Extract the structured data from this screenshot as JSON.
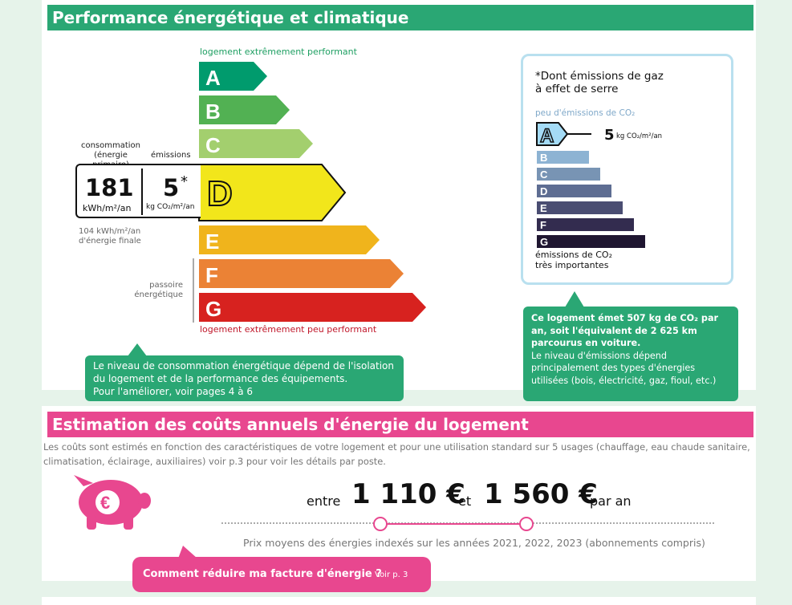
{
  "dpe": {
    "title": "Performance énergétique et climatique",
    "top_label": "logement extrêmement performant",
    "bottom_label": "logement extrêmement peu performant",
    "classes": [
      "A",
      "B",
      "C",
      "D",
      "E",
      "F",
      "G"
    ],
    "current_class": "D",
    "consumption_label": "consommation\n(énergie primaire)",
    "emissions_label": "émissions",
    "consumption_value": "181",
    "consumption_unit": "kWh/m²/an",
    "emissions_value": "5",
    "emissions_star": "*",
    "emissions_unit": "kg CO₂/m²/an",
    "final_energy": "104 kWh/m²/an\nd'énergie finale",
    "passoire": "passoire\nénergétique",
    "info": "Le niveau de consommation énergétique dépend de l'isolation du logement et de la performance des équipements.\nPour l'améliorer, voir pages 4 à 6",
    "colors": {
      "A": "#009b6d",
      "B": "#52b153",
      "C": "#a3cf6e",
      "D": "#f2e61b",
      "E": "#f0b41c",
      "F": "#eb8235",
      "G": "#d7221f"
    }
  },
  "ges": {
    "heading": "*Dont émissions de gaz\nà effet de serre",
    "top_label": "peu d'émissions de CO₂",
    "current_class": "A",
    "value": "5",
    "unit": "kg CO₂/m²/an",
    "classes": [
      "B",
      "C",
      "D",
      "E",
      "F",
      "G"
    ],
    "bottom_label": "émissions de CO₂\ntrès importantes",
    "colors": {
      "A": "#a4dbf6",
      "B": "#8db3d3",
      "C": "#7894b4",
      "D": "#5e6d92",
      "E": "#4a4d72",
      "F": "#332c4f",
      "G": "#1f1631"
    },
    "info_bold": "Ce logement émet 507 kg de CO₂ par an, soit l'équivalent de 2 625 km parcourus en voiture.",
    "info_normal": "Le niveau d'émissions dépend principalement des types d'énergies utilisées (bois, électricité, gaz, fioul, etc.)"
  },
  "costs": {
    "title": "Estimation des coûts annuels d'énergie du logement",
    "description": "Les coûts sont estimés en fonction des caractéristiques de votre logement et pour une utilisation standard sur 5 usages (chauffage, eau chaude sanitaire, climatisation, éclairage, auxiliaires) voir p.3 pour voir les détails par poste.",
    "between": "entre",
    "min": "1 110 €",
    "and": "et",
    "max": "1 560 €",
    "per_year": "par an",
    "prices_note": "Prix moyens des énergies indexés sur les années 2021, 2022, 2023 (abonnements compris)",
    "cta_label": "Comment réduire ma facture d'énergie ?",
    "cta_ref": "Voir p. 3",
    "accent": "#e8478f"
  }
}
